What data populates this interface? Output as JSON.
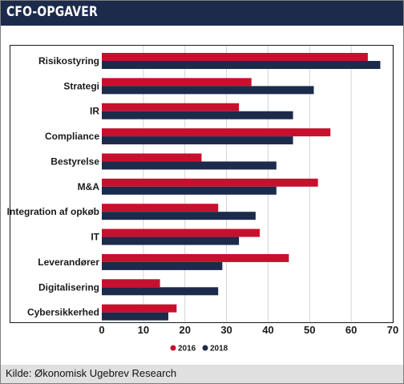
{
  "header": {
    "title": "CFO-OPGAVER"
  },
  "footer": {
    "source": "Kilde: Økonomisk Ugebrev Research"
  },
  "chart_data": {
    "type": "bar",
    "orientation": "horizontal",
    "title": "CFO-OPGAVER",
    "categories": [
      "Risikostyring",
      "Strategi",
      "IR",
      "Compliance",
      "Bestyrelse",
      "M&A",
      "Integration af opkøb",
      "IT",
      "Leverandører",
      "Digitalisering",
      "Cybersikkerhed"
    ],
    "series": [
      {
        "name": "2016",
        "color": "#c8102e",
        "values": [
          64,
          36,
          33,
          55,
          24,
          52,
          28,
          38,
          45,
          14,
          18
        ]
      },
      {
        "name": "2018",
        "color": "#1c2b4b",
        "values": [
          67,
          51,
          46,
          46,
          42,
          42,
          37,
          33,
          29,
          28,
          16
        ]
      }
    ],
    "xlim": [
      0,
      70
    ],
    "xticks": [
      0,
      10,
      20,
      30,
      40,
      50,
      60,
      70
    ],
    "grid": true,
    "legend_position": "bottom-center"
  }
}
